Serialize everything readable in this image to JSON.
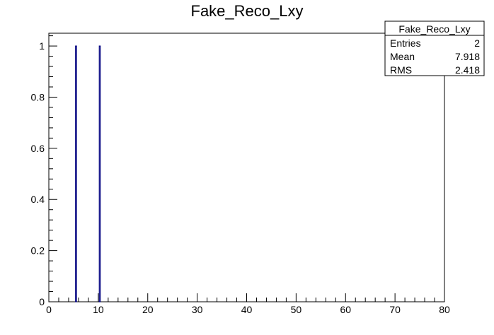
{
  "chart_data": {
    "type": "bar",
    "title": "Fake_Reco_Lxy",
    "xlabel": "",
    "ylabel": "",
    "xlim": [
      0,
      80
    ],
    "ylim": [
      0,
      1.05
    ],
    "x_ticks": [
      0,
      10,
      20,
      30,
      40,
      50,
      60,
      70,
      80
    ],
    "y_ticks": [
      0,
      0.2,
      0.4,
      0.6,
      0.8,
      1
    ],
    "grid": false,
    "line_color": "#000080",
    "series": [
      {
        "bins": [
          {
            "x_low": 5.4,
            "x_high": 5.6,
            "value": 1
          },
          {
            "x_low": 10.2,
            "x_high": 10.4,
            "value": 1
          }
        ]
      }
    ],
    "stats_box": {
      "title": "Fake_Reco_Lxy",
      "position": "top-right",
      "rows": [
        {
          "label": "Entries",
          "value": "2"
        },
        {
          "label": "Mean",
          "value": "7.918"
        },
        {
          "label": "RMS",
          "value": "2.418"
        }
      ]
    }
  }
}
